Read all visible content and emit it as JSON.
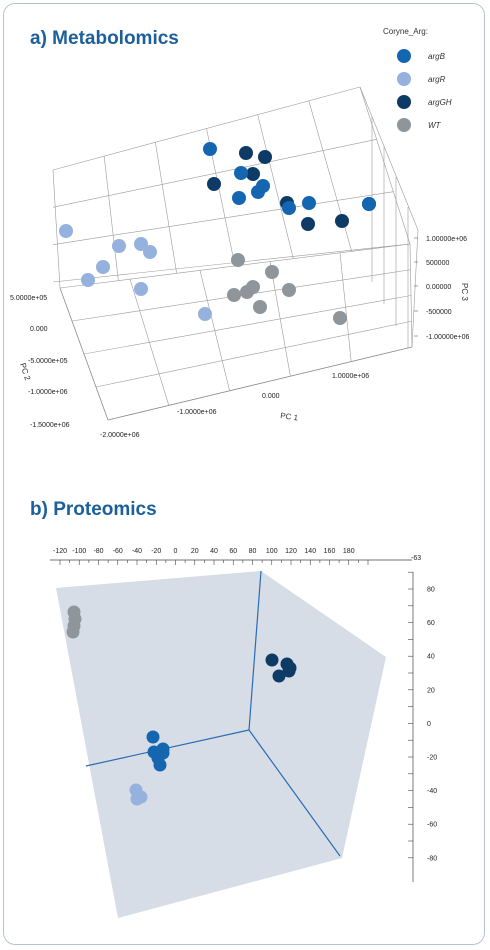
{
  "colors": {
    "argB": "#1566b0",
    "argR": "#95b1de",
    "argGH": "#0d3b66",
    "WT": "#8e969c",
    "title": "#1c5f9a",
    "plane": "#d6dde6",
    "prot_axis": "#2a6cb5"
  },
  "chart_data": [
    {
      "type": "scatter",
      "projection": "3d",
      "title": "a) Metabolomics",
      "legend": {
        "title": "Coryne_Arg:",
        "placement": "top-right",
        "entries": [
          {
            "label": "argB",
            "color_key": "argB"
          },
          {
            "label": "argR",
            "color_key": "argR"
          },
          {
            "label": "argGH",
            "color_key": "argGH"
          },
          {
            "label": "WT",
            "color_key": "WT"
          }
        ]
      },
      "axes": {
        "x": {
          "label": "PC 1",
          "ticks": [
            "-2.0000e+06",
            "-1.0000e+06",
            "0.000",
            "1.0000e+06"
          ]
        },
        "y": {
          "label": "PC 2",
          "ticks": [
            "5.0000e+05",
            "0.000",
            "-5.0000e+05",
            "-1.0000e+06",
            "-1.5000e+06"
          ]
        },
        "z": {
          "label": "PC 3",
          "ticks": [
            "1.00000e+06",
            "500000",
            "0.00000",
            "-500000",
            "-1.00000e+06"
          ]
        }
      },
      "grid": true,
      "groups": [
        {
          "name": "argB",
          "points": [
            [
              210,
              149
            ],
            [
              241,
              173
            ],
            [
              263,
              186
            ],
            [
              239,
              198
            ],
            [
              258,
              192
            ],
            [
              289,
              208
            ],
            [
              309,
              203
            ],
            [
              369,
              204
            ]
          ]
        },
        {
          "name": "argGH",
          "points": [
            [
              246,
              153
            ],
            [
              265,
              157
            ],
            [
              214,
              184
            ],
            [
              253,
              174
            ],
            [
              287,
              203
            ],
            [
              308,
              224
            ],
            [
              342,
              221
            ],
            [
              369,
              204
            ]
          ]
        },
        {
          "name": "argR",
          "points": [
            [
              66,
              231
            ],
            [
              119,
              246
            ],
            [
              141,
              244
            ],
            [
              150,
              252
            ],
            [
              103,
              267
            ],
            [
              88,
              280
            ],
            [
              141,
              289
            ],
            [
              205,
              314
            ]
          ]
        },
        {
          "name": "WT",
          "points": [
            [
              238,
              260
            ],
            [
              272,
              272
            ],
            [
              253,
              287
            ],
            [
              247,
              292
            ],
            [
              234,
              295
            ],
            [
              289,
              290
            ],
            [
              260,
              307
            ],
            [
              340,
              318
            ]
          ]
        }
      ]
    },
    {
      "type": "scatter",
      "projection": "3d",
      "title": "b) Proteomics",
      "axes": {
        "top": {
          "ticks": [
            "-120",
            "-100",
            "-80",
            "-60",
            "-40",
            "-20",
            "0",
            "20",
            "40",
            "60",
            "80",
            "100",
            "120",
            "140",
            "160",
            "180"
          ],
          "corner_label": "-63"
        },
        "right": {
          "ticks": [
            "80",
            "60",
            "40",
            "20",
            "0",
            "-20",
            "-40",
            "-60",
            "-80"
          ]
        }
      },
      "groups": [
        {
          "name": "WT",
          "points": [
            [
              74,
              612
            ],
            [
              75,
              619
            ],
            [
              74,
              626
            ],
            [
              73,
              632
            ]
          ]
        },
        {
          "name": "argGH",
          "points": [
            [
              272,
              660
            ],
            [
              287,
              664
            ],
            [
              289,
              671
            ],
            [
              279,
              676
            ],
            [
              290,
              668
            ]
          ]
        },
        {
          "name": "argB",
          "points": [
            [
              153,
              737
            ],
            [
              163,
              749
            ],
            [
              154,
              752
            ],
            [
              160,
              765
            ],
            [
              158,
              758
            ],
            [
              163,
              753
            ]
          ]
        },
        {
          "name": "argR",
          "points": [
            [
              136,
              790
            ],
            [
              141,
              797
            ],
            [
              137,
              799
            ]
          ]
        }
      ]
    }
  ]
}
